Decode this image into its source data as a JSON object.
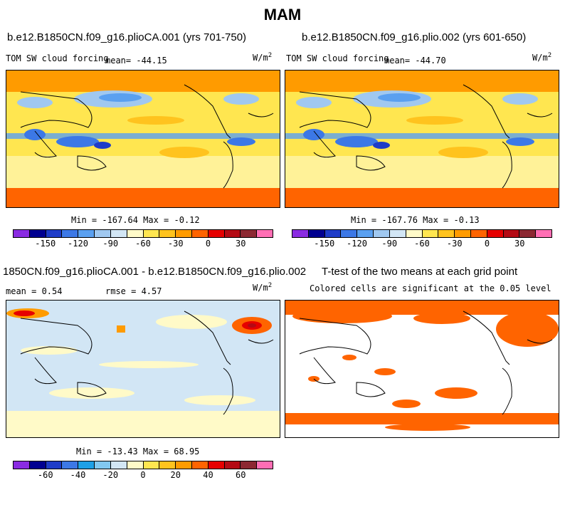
{
  "season": "MAM",
  "panels": {
    "top_left": {
      "case": "b.e12.B1850CN.f09_g16.plioCA.001 (yrs 701-750)",
      "variable": "TOM SW cloud forcing",
      "mean": "mean= -44.15",
      "units": "W/m",
      "units_exp": "2",
      "minmax": "Min = -167.64 Max = -0.12"
    },
    "top_right": {
      "case": "b.e12.B1850CN.f09_g16.plio.002 (yrs 601-650)",
      "variable": "TOM SW cloud forcing",
      "mean": "mean= -44.70",
      "units": "W/m",
      "units_exp": "2",
      "minmax": "Min = -167.76 Max = -0.13"
    },
    "bottom_left": {
      "case": "1850CN.f09_g16.plioCA.001 - b.e12.B1850CN.f09_g16.plio.002",
      "mean": "mean =   0.54",
      "rmse": "rmse =   4.57",
      "units": "W/m",
      "units_exp": "2",
      "minmax": "Min = -13.43 Max =  68.95"
    },
    "bottom_right": {
      "title": "T-test of the two means at each grid point",
      "note": "Colored cells are significant at the 0.05 level"
    }
  },
  "colorbar_top": {
    "colors": [
      "#8a2be2",
      "#000090",
      "#1e3cc8",
      "#3c78e6",
      "#5aa0f0",
      "#a0c8f0",
      "#d2e6f5",
      "#fffac8",
      "#ffe650",
      "#ffc31e",
      "#ff9b00",
      "#ff6400",
      "#e60000",
      "#b40a14",
      "#8c2832",
      "#ff6eb4"
    ],
    "ticks": [
      "-150",
      "-120",
      "-90",
      "-60",
      "-30",
      "0",
      "30"
    ]
  },
  "colorbar_bottom": {
    "colors": [
      "#8a2be2",
      "#000090",
      "#1e3cc8",
      "#3c78e6",
      "#1ea0e6",
      "#82c8f0",
      "#d2e6f5",
      "#fffac8",
      "#ffe650",
      "#ffc31e",
      "#ff9b00",
      "#ff6400",
      "#e60000",
      "#b40a14",
      "#8c2832",
      "#ff6eb4"
    ],
    "ticks": [
      "-60",
      "-40",
      "-20",
      "0",
      "20",
      "40",
      "60"
    ]
  }
}
